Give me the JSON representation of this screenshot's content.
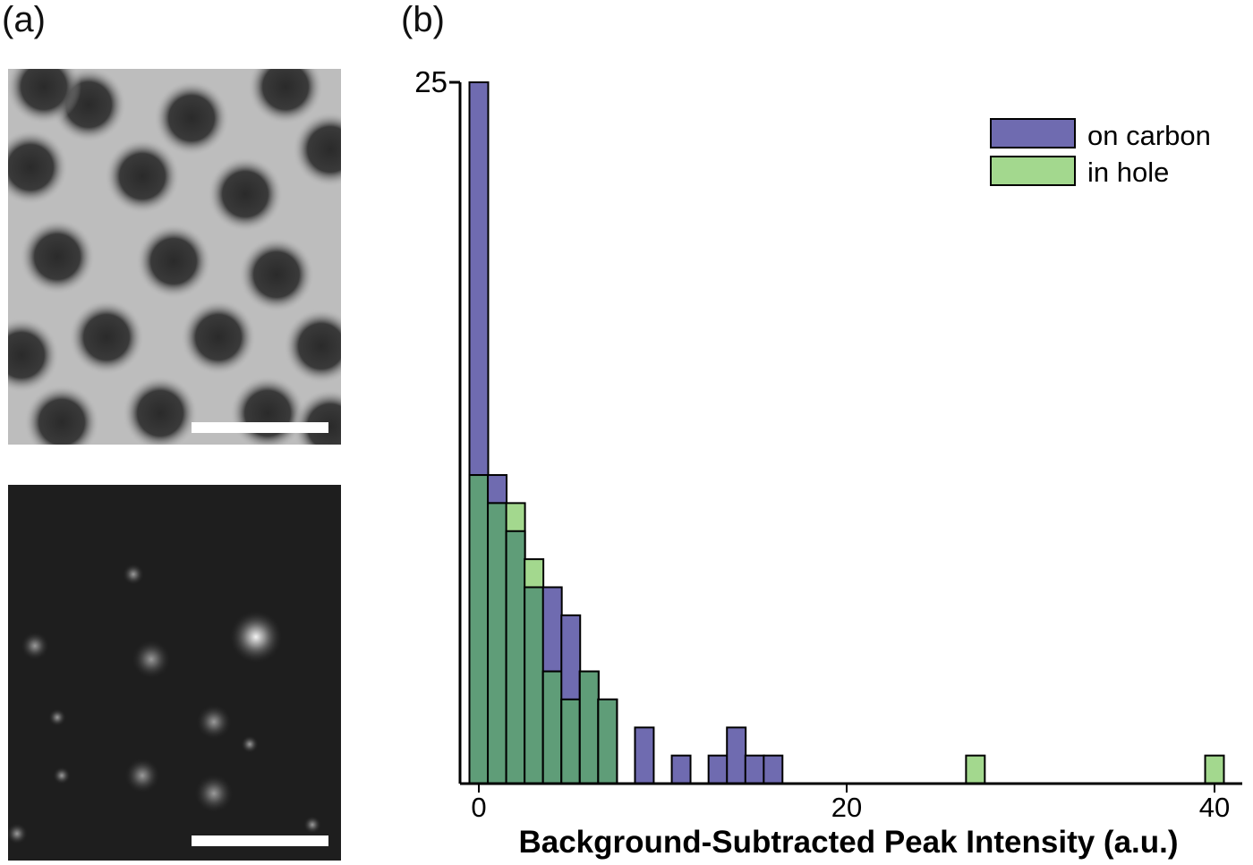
{
  "panels": {
    "a": "(a)",
    "b": "(b)"
  },
  "images": {
    "top": {
      "description_name": "carbon-hole-micrograph",
      "scale_bar": true
    },
    "bottom": {
      "description_name": "fluorescence-micrograph",
      "scale_bar": true
    }
  },
  "chart_data": {
    "type": "bar",
    "subtype": "overlapping-histogram",
    "xlabel": "Background-Subtracted Peak Intensity (a.u.)",
    "ylabel": "",
    "xlim": [
      -0.7,
      41
    ],
    "ylim": [
      0,
      25
    ],
    "x_ticks": [
      0,
      20,
      40
    ],
    "y_ticks": [
      25
    ],
    "bin_width": 1.02,
    "legend": {
      "placement": "top-right",
      "entries": [
        "on carbon",
        "in hole"
      ]
    },
    "colors": {
      "on carbon": "#6f6bb0",
      "in hole": "#a3d88e",
      "overlap": "#5f9d78"
    },
    "series": [
      {
        "name": "on carbon",
        "bins": [
          {
            "x": 0,
            "count": 25
          },
          {
            "x": 1,
            "count": 11
          },
          {
            "x": 2,
            "count": 9
          },
          {
            "x": 3,
            "count": 7
          },
          {
            "x": 4,
            "count": 7
          },
          {
            "x": 5,
            "count": 6
          },
          {
            "x": 6,
            "count": 4
          },
          {
            "x": 7,
            "count": 3
          },
          {
            "x": 9,
            "count": 2
          },
          {
            "x": 11,
            "count": 1
          },
          {
            "x": 13,
            "count": 1
          },
          {
            "x": 14,
            "count": 2
          },
          {
            "x": 15,
            "count": 1
          },
          {
            "x": 16,
            "count": 1
          }
        ]
      },
      {
        "name": "in hole",
        "bins": [
          {
            "x": 0,
            "count": 11
          },
          {
            "x": 1,
            "count": 10
          },
          {
            "x": 2,
            "count": 10
          },
          {
            "x": 3,
            "count": 8
          },
          {
            "x": 4,
            "count": 4
          },
          {
            "x": 5,
            "count": 3
          },
          {
            "x": 6,
            "count": 4
          },
          {
            "x": 7,
            "count": 3
          },
          {
            "x": 27,
            "count": 1
          },
          {
            "x": 40,
            "count": 1
          }
        ]
      }
    ]
  }
}
